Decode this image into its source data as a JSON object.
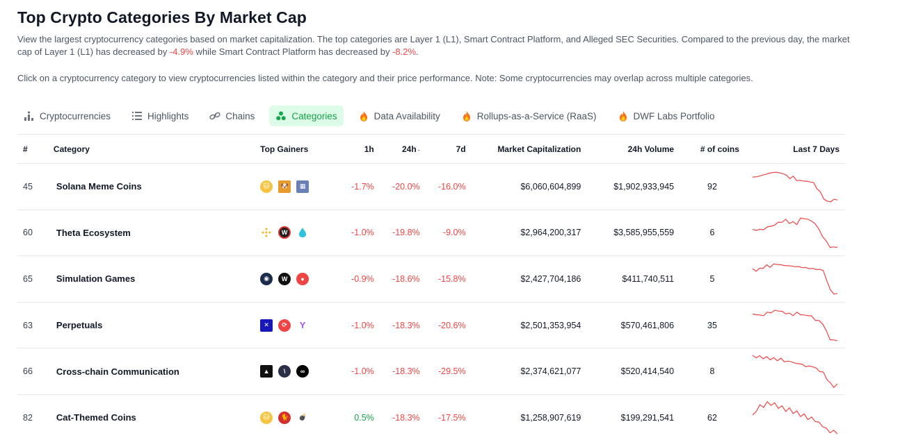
{
  "page": {
    "title": "Top Crypto Categories By Market Cap",
    "desc_part1": "View the largest cryptocurrency categories based on market capitalization. The top categories are Layer 1 (L1), Smart Contract Platform, and Alleged SEC Securities. Compared to the previous day, the market cap of Layer 1 (L1) has decreased by ",
    "desc_change1": "-4.9%",
    "desc_part2": " while Smart Contract Platform has decreased by ",
    "desc_change2": "-8.2%",
    "desc_part3": ".",
    "note": "Click on a cryptocurrency category to view cryptocurrencies listed within the category and their price performance. Note: Some cryptocurrencies may overlap across multiple categories."
  },
  "tabs": [
    {
      "label": "Cryptocurrencies",
      "icon": "bar-chart-icon"
    },
    {
      "label": "Highlights",
      "icon": "list-icon"
    },
    {
      "label": "Chains",
      "icon": "link-icon"
    },
    {
      "label": "Categories",
      "icon": "categories-icon",
      "active": true
    },
    {
      "label": "Data Availability",
      "icon": "fire-icon"
    },
    {
      "label": "Rollups-as-a-Service (RaaS)",
      "icon": "fire-icon"
    },
    {
      "label": "DWF Labs Portfolio",
      "icon": "fire-icon"
    }
  ],
  "table": {
    "headers": {
      "rank": "#",
      "category": "Category",
      "gainers": "Top Gainers",
      "h1": "1h",
      "h24": "24h",
      "d7": "7d",
      "mcap": "Market Capitalization",
      "vol": "24h Volume",
      "coins": "# of coins",
      "last7": "Last 7 Days"
    },
    "rows": [
      {
        "rank": "45",
        "name": "Solana Meme Coins",
        "h1": "-1.7%",
        "h24": "-20.0%",
        "d7": "-16.0%",
        "mcap": "$6,060,604,899",
        "vol": "$1,902,933,945",
        "coins": "92",
        "spark": [
          62,
          66,
          64,
          70,
          68,
          74,
          72,
          76,
          71,
          73,
          66,
          62,
          64,
          58,
          55,
          57,
          53,
          55,
          50,
          40,
          30,
          18,
          10,
          12,
          14,
          16
        ]
      },
      {
        "rank": "60",
        "name": "Theta Ecosystem",
        "h1": "-1.0%",
        "h24": "-19.8%",
        "d7": "-9.0%",
        "mcap": "$2,964,200,317",
        "vol": "$3,585,955,559",
        "coins": "6",
        "spark": [
          40,
          41,
          40,
          42,
          44,
          48,
          47,
          55,
          52,
          60,
          50,
          56,
          48,
          62,
          58,
          60,
          54,
          52,
          40,
          30,
          20,
          12,
          10,
          12
        ]
      },
      {
        "rank": "65",
        "name": "Simulation Games",
        "h1": "-0.9%",
        "h24": "-18.6%",
        "d7": "-15.8%",
        "mcap": "$2,427,704,186",
        "vol": "$411,740,511",
        "coins": "5",
        "spark": [
          62,
          60,
          63,
          66,
          70,
          68,
          72,
          74,
          70,
          72,
          68,
          71,
          66,
          70,
          64,
          68,
          62,
          66,
          60,
          64,
          58,
          40,
          18,
          12,
          10
        ]
      },
      {
        "rank": "63",
        "name": "Perpetuals",
        "h1": "-1.0%",
        "h24": "-18.3%",
        "d7": "-20.6%",
        "mcap": "$2,501,353,954",
        "vol": "$570,461,806",
        "coins": "35",
        "spark": [
          66,
          68,
          64,
          66,
          70,
          72,
          74,
          76,
          72,
          70,
          68,
          66,
          70,
          68,
          64,
          66,
          62,
          56,
          52,
          48,
          30,
          14,
          10,
          12
        ]
      },
      {
        "rank": "66",
        "name": "Cross-chain Communication",
        "h1": "-1.0%",
        "h24": "-18.3%",
        "d7": "-29.5%",
        "mcap": "$2,374,621,077",
        "vol": "$520,414,540",
        "coins": "8",
        "spark": [
          76,
          74,
          75,
          72,
          73,
          70,
          71,
          68,
          70,
          66,
          64,
          66,
          60,
          62,
          58,
          56,
          54,
          56,
          50,
          46,
          42,
          30,
          20,
          14,
          18
        ]
      },
      {
        "rank": "82",
        "name": "Cat-Themed Coins",
        "h1": "0.5%",
        "h24": "-18.3%",
        "d7": "-17.5%",
        "mcap": "$1,258,907,619",
        "vol": "$199,291,541",
        "coins": "62",
        "spark": [
          40,
          50,
          60,
          58,
          66,
          62,
          64,
          56,
          58,
          50,
          54,
          46,
          48,
          40,
          42,
          34,
          36,
          30,
          26,
          20,
          14,
          8,
          10,
          6
        ]
      }
    ]
  },
  "colors": {
    "accent": "#16a34a",
    "negative": "#ef4444",
    "positive": "#16a34a"
  }
}
